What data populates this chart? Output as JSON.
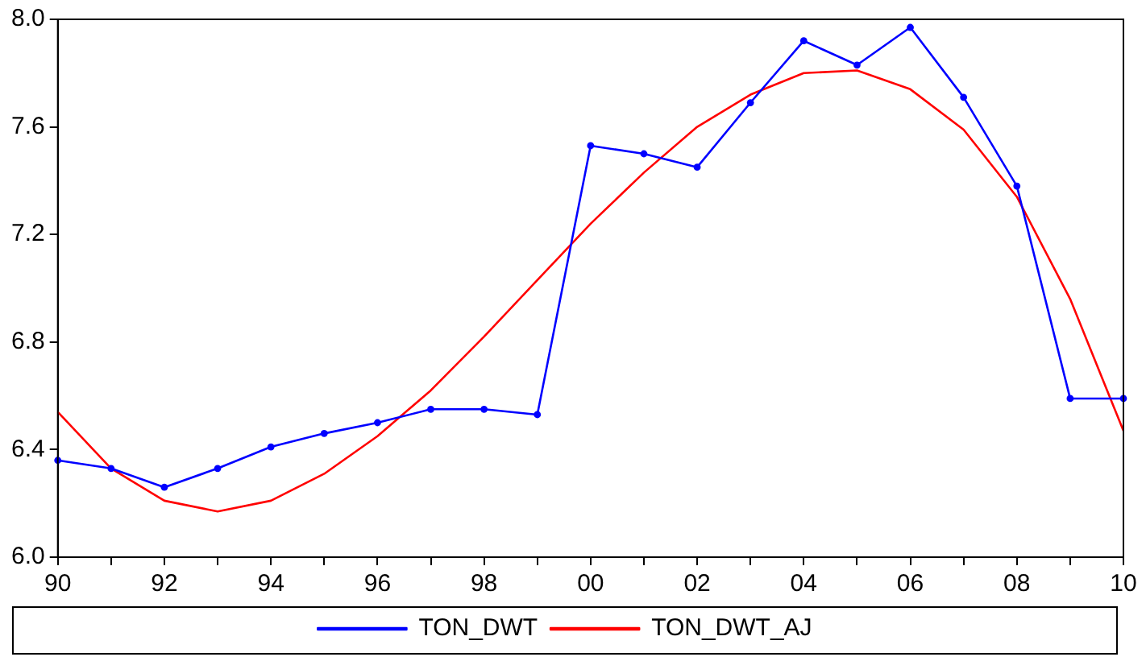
{
  "chart_data": {
    "type": "line",
    "categories": [
      "90",
      null,
      "92",
      null,
      "94",
      null,
      "96",
      null,
      "98",
      null,
      "00",
      null,
      "02",
      null,
      "04",
      null,
      "06",
      null,
      "08",
      null,
      "10"
    ],
    "series": [
      {
        "name": "TON_DWT",
        "color": "#0000ff",
        "marker": "circle",
        "values": [
          6.36,
          6.33,
          6.26,
          6.33,
          6.41,
          6.46,
          6.5,
          6.55,
          6.55,
          6.53,
          7.53,
          7.5,
          7.45,
          7.69,
          7.92,
          7.83,
          7.97,
          7.71,
          7.38,
          6.59,
          6.59
        ]
      },
      {
        "name": "TON_DWT_AJ",
        "color": "#ff0000",
        "marker": "none",
        "values": [
          6.54,
          6.33,
          6.21,
          6.17,
          6.21,
          6.31,
          6.45,
          6.62,
          6.82,
          7.03,
          7.24,
          7.43,
          7.6,
          7.72,
          7.8,
          7.81,
          7.74,
          7.59,
          7.34,
          6.96,
          6.47
        ]
      }
    ],
    "ylim": [
      6.0,
      8.0
    ],
    "yticks": [
      {
        "value": 6.0,
        "label": "6.0"
      },
      {
        "value": 6.4,
        "label": "6.4"
      },
      {
        "value": 6.8,
        "label": "6.8"
      },
      {
        "value": 7.2,
        "label": "7.2"
      },
      {
        "value": 7.6,
        "label": "7.6"
      },
      {
        "value": 8.0,
        "label": "8.0"
      }
    ],
    "grid": false,
    "legend": "bottom",
    "line_style": "solid"
  }
}
